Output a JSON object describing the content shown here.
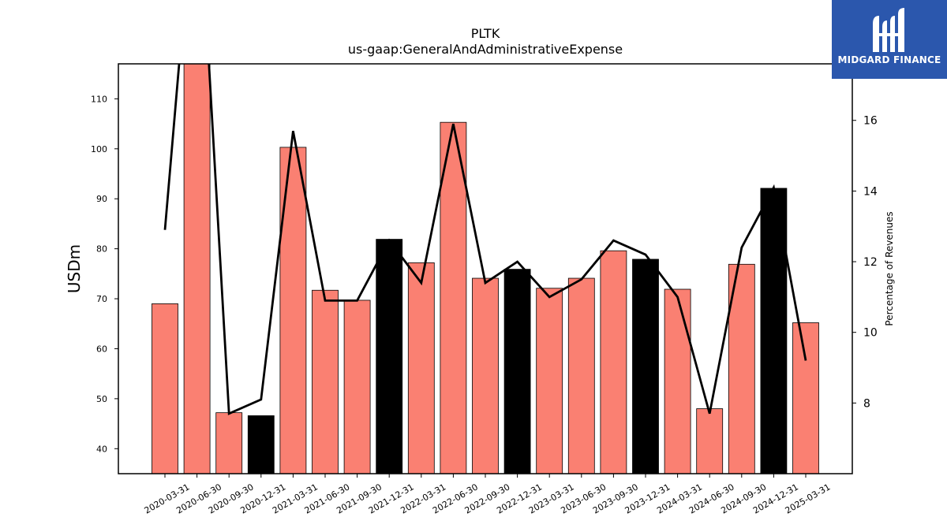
{
  "chart_data": {
    "type": "bar",
    "title": "PLTK",
    "subtitle": "us-gaap:GeneralAndAdministrativeExpense",
    "ylabel": "USDm",
    "y2label": "Percentage of Revenues",
    "ylim": [
      35,
      117
    ],
    "y2lim": [
      6.0,
      17.6
    ],
    "yticks": [
      40,
      50,
      60,
      70,
      80,
      90,
      100,
      110
    ],
    "y2ticks": [
      8,
      10,
      12,
      14,
      16
    ],
    "categories": [
      "2020-03-31",
      "2020-06-30",
      "2020-09-30",
      "2020-12-31",
      "2021-03-31",
      "2021-06-30",
      "2021-09-30",
      "2021-12-31",
      "2022-03-31",
      "2022-06-30",
      "2022-09-30",
      "2022-12-31",
      "2023-03-31",
      "2023-06-30",
      "2023-09-30",
      "2023-12-31",
      "2024-03-31",
      "2024-06-30",
      "2024-09-30",
      "2024-12-31",
      "2025-03-31"
    ],
    "series": [
      {
        "values": [
          69.0,
          117.0,
          47.2,
          46.6,
          100.3,
          71.7,
          69.7,
          81.9,
          77.2,
          105.3,
          74.1,
          75.9,
          72.1,
          74.1,
          79.6,
          77.9,
          71.9,
          48.0,
          76.9,
          92.1,
          65.2
        ],
        "bar_colors": [
          "#fa8072",
          "#fa8072",
          "#fa8072",
          "#000000",
          "#fa8072",
          "#fa8072",
          "#fa8072",
          "#000000",
          "#fa8072",
          "#fa8072",
          "#fa8072",
          "#000000",
          "#fa8072",
          "#fa8072",
          "#fa8072",
          "#000000",
          "#fa8072",
          "#fa8072",
          "#fa8072",
          "#000000",
          "#fa8072"
        ]
      },
      {
        "axis": "right",
        "type": "line",
        "color": "#000000",
        "values": [
          12.9,
          23.5,
          7.7,
          8.1,
          15.7,
          10.9,
          10.9,
          12.6,
          11.4,
          15.9,
          11.4,
          12.0,
          11.0,
          11.5,
          12.6,
          12.2,
          11.0,
          7.7,
          12.4,
          14.1,
          9.2
        ]
      }
    ],
    "grid": false,
    "legend": "none"
  },
  "logo": {
    "text": "MIDGARD FINANCE",
    "icon": "midgard-logo-icon",
    "color": "#2b57ad"
  }
}
